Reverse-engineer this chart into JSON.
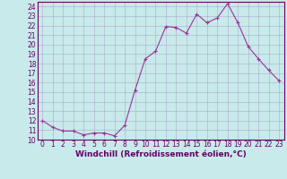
{
  "x": [
    0,
    1,
    2,
    3,
    4,
    5,
    6,
    7,
    8,
    9,
    10,
    11,
    12,
    13,
    14,
    15,
    16,
    17,
    18,
    19,
    20,
    21,
    22,
    23
  ],
  "y": [
    12.0,
    11.3,
    10.9,
    10.9,
    10.5,
    10.7,
    10.7,
    10.4,
    11.5,
    15.2,
    18.5,
    19.3,
    21.9,
    21.8,
    21.2,
    23.2,
    22.3,
    22.8,
    24.3,
    22.3,
    19.8,
    18.5,
    17.3,
    16.2
  ],
  "line_color": "#993399",
  "marker": "+",
  "bg_color": "#c8eaea",
  "grid_color": "#aaaacc",
  "xlabel": "Windchill (Refroidissement éolien,°C)",
  "xlim": [
    -0.5,
    23.5
  ],
  "ylim": [
    10,
    24.5
  ],
  "yticks": [
    10,
    11,
    12,
    13,
    14,
    15,
    16,
    17,
    18,
    19,
    20,
    21,
    22,
    23,
    24
  ],
  "xticks": [
    0,
    1,
    2,
    3,
    4,
    5,
    6,
    7,
    8,
    9,
    10,
    11,
    12,
    13,
    14,
    15,
    16,
    17,
    18,
    19,
    20,
    21,
    22,
    23
  ],
  "font_color": "#660066",
  "tick_fontsize": 5.5,
  "xlabel_fontsize": 6.5,
  "linewidth": 0.8,
  "markersize": 3.5,
  "spine_color": "#660066",
  "border_color": "#660066"
}
